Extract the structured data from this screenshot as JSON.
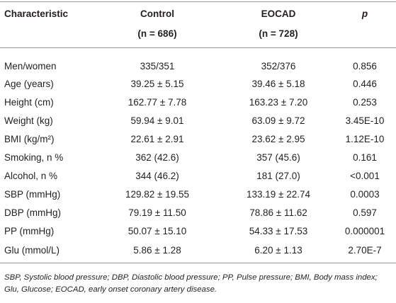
{
  "table": {
    "columns": [
      "Characteristic",
      "Control",
      "EOCAD",
      "p"
    ],
    "subheaders": [
      "(n = 686)",
      "(n = 728)"
    ],
    "rows": [
      [
        "Men/women",
        "335/351",
        "352/376",
        "0.856"
      ],
      [
        "Age (years)",
        "39.25 ± 5.15",
        "39.46 ± 5.18",
        "0.446"
      ],
      [
        "Height (cm)",
        "162.77 ± 7.78",
        "163.23 ± 7.20",
        "0.253"
      ],
      [
        "Weight (kg)",
        "59.94 ± 9.01",
        "63.09 ± 9.72",
        "3.45E-10"
      ],
      [
        "BMI (kg/m²)",
        "22.61 ± 2.91",
        "23.62 ± 2.95",
        "1.12E-10"
      ],
      [
        "Smoking, n %",
        "362 (42.6)",
        "357 (45.6)",
        "0.161"
      ],
      [
        "Alcohol, n %",
        "344 (46.2)",
        "181 (27.0)",
        "<0.001"
      ],
      [
        "SBP (mmHg)",
        "129.82 ± 19.55",
        "133.19 ± 22.74",
        "0.0003"
      ],
      [
        "DBP (mmHg)",
        "79.19 ± 11.50",
        "78.86 ± 11.62",
        "0.597"
      ],
      [
        "PP (mmHg)",
        "50.07 ± 15.10",
        "54.33 ± 17.53",
        "0.000001"
      ],
      [
        "Glu (mmol/L)",
        "5.86 ± 1.28",
        "6.20 ± 1.13",
        "2.70E-7"
      ]
    ],
    "footnote": "SBP, Systolic blood pressure; DBP, Diastolic blood pressure; PP, Pulse pressure; BMI, Body mass index; Glu, Glucose; EOCAD, early onset coronary artery disease."
  }
}
